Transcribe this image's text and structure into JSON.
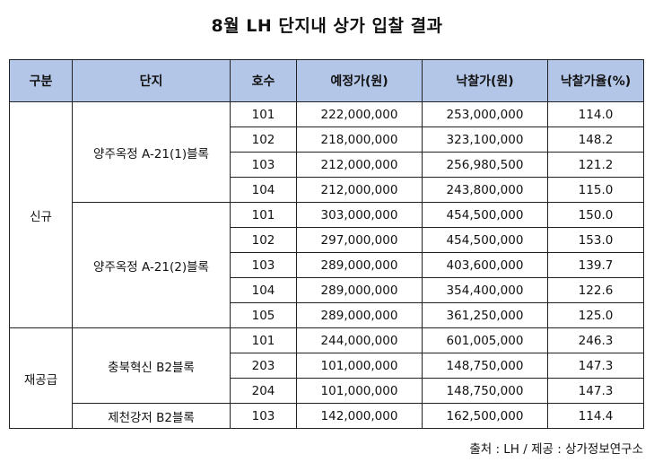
{
  "title": "8월 LH 단지내 상가 입찰 결과",
  "table": {
    "headers": [
      "구분",
      "단지",
      "호수",
      "예정가(원)",
      "낙찰가(원)",
      "낙찰가율(%)"
    ],
    "groups": [
      {
        "category": "신규",
        "complexes": [
          {
            "name": "양주옥정 A-21(1)블록",
            "rows": [
              {
                "unit": "101",
                "planned": "222,000,000",
                "winning": "253,000,000",
                "rate": "114.0"
              },
              {
                "unit": "102",
                "planned": "218,000,000",
                "winning": "323,100,000",
                "rate": "148.2"
              },
              {
                "unit": "103",
                "planned": "212,000,000",
                "winning": "256,980,500",
                "rate": "121.2"
              },
              {
                "unit": "104",
                "planned": "212,000,000",
                "winning": "243,800,000",
                "rate": "115.0"
              }
            ]
          },
          {
            "name": "양주옥정 A-21(2)블록",
            "rows": [
              {
                "unit": "101",
                "planned": "303,000,000",
                "winning": "454,500,000",
                "rate": "150.0"
              },
              {
                "unit": "102",
                "planned": "297,000,000",
                "winning": "454,500,000",
                "rate": "153.0"
              },
              {
                "unit": "103",
                "planned": "289,000,000",
                "winning": "403,600,000",
                "rate": "139.7"
              },
              {
                "unit": "104",
                "planned": "289,000,000",
                "winning": "354,400,000",
                "rate": "122.6"
              },
              {
                "unit": "105",
                "planned": "289,000,000",
                "winning": "361,250,000",
                "rate": "125.0"
              }
            ]
          }
        ]
      },
      {
        "category": "재공급",
        "complexes": [
          {
            "name": "충북혁신 B2블록",
            "rows": [
              {
                "unit": "101",
                "planned": "244,000,000",
                "winning": "601,005,000",
                "rate": "246.3"
              },
              {
                "unit": "203",
                "planned": "101,000,000",
                "winning": "148,750,000",
                "rate": "147.3"
              },
              {
                "unit": "204",
                "planned": "101,000,000",
                "winning": "148,750,000",
                "rate": "147.3"
              }
            ]
          },
          {
            "name": "제천강저 B2블록",
            "rows": [
              {
                "unit": "103",
                "planned": "142,000,000",
                "winning": "162,500,000",
                "rate": "114.4"
              }
            ]
          }
        ]
      }
    ]
  },
  "source": "출처 : LH / 제공 : 상가정보연구소"
}
